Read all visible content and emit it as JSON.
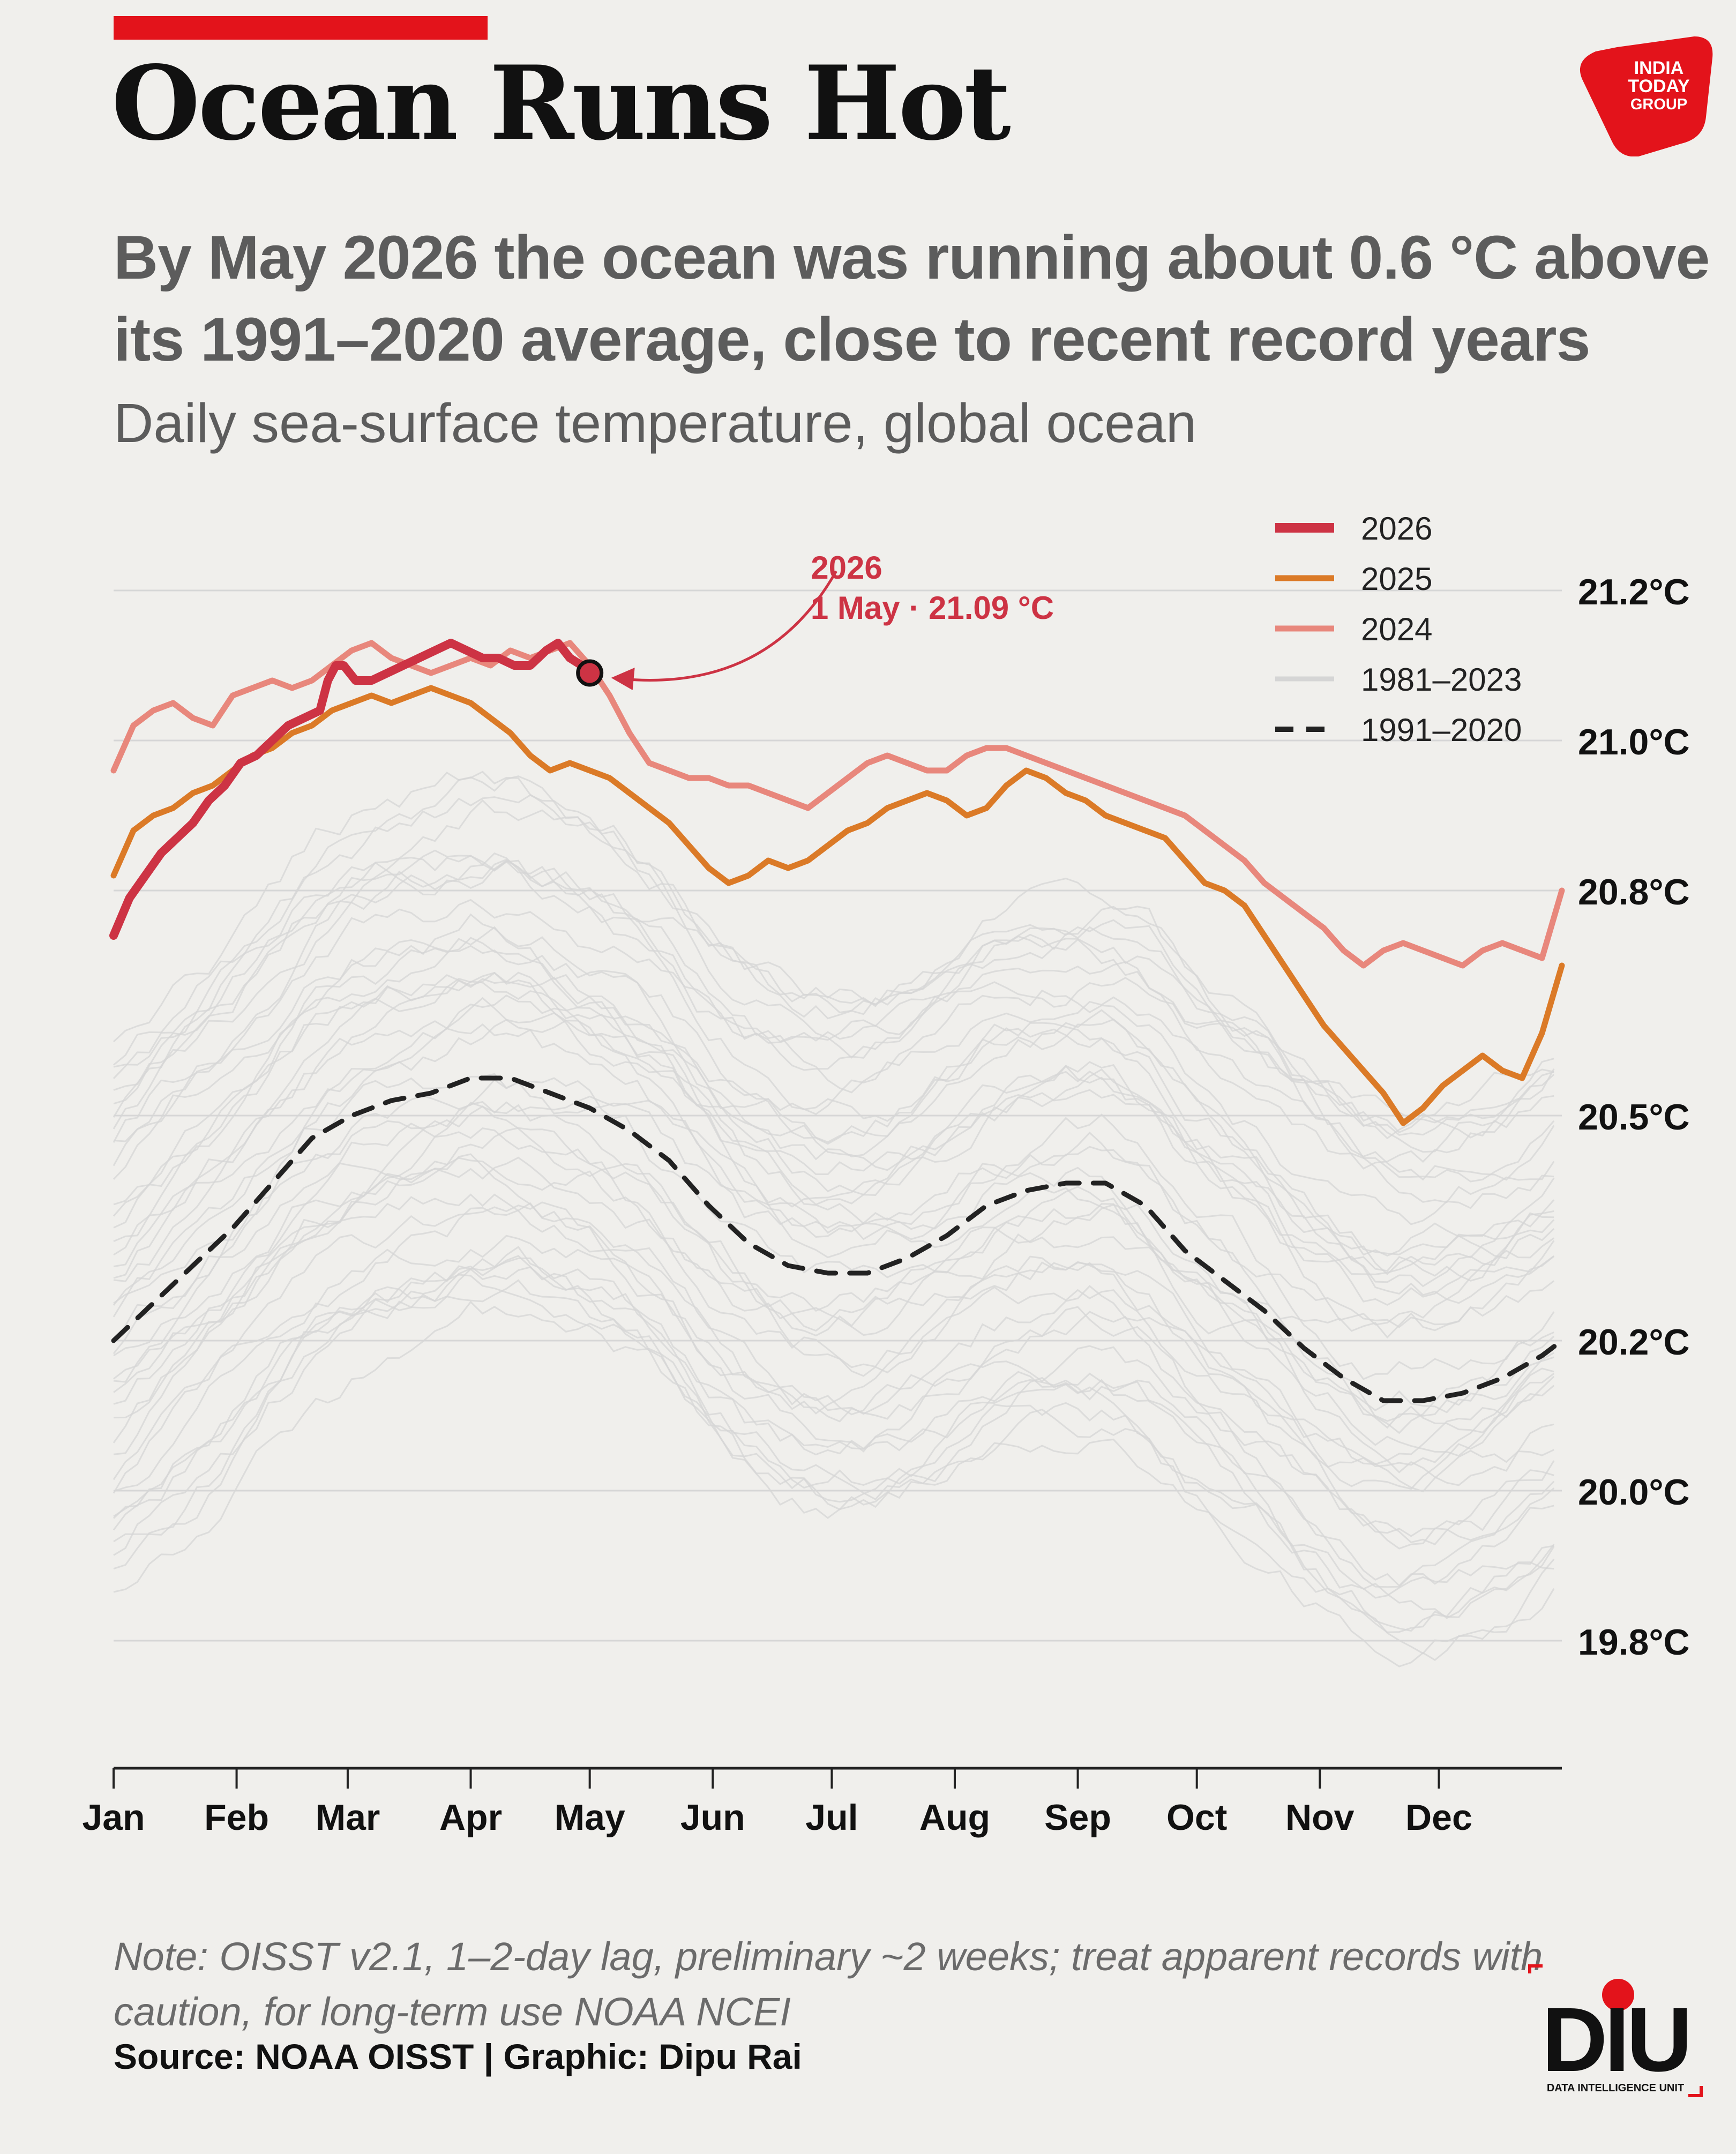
{
  "header": {
    "title": "Ocean Runs Hot",
    "subtitle": "By May 2026 the ocean was running about 0.6 °C above its 1991–2020 average, close to recent record years",
    "caption": "Daily sea-surface temperature, global ocean"
  },
  "footer": {
    "note": "Note: OISST v2.1, 1–2-day lag, preliminary ~2 weeks; treat apparent records with caution, for long-term use NOAA NCEI",
    "source": "Source: NOAA OISST | Graphic: Dipu Rai"
  },
  "logos": {
    "publisher": "INDIA TODAY GROUP",
    "unit": "DIU",
    "unit_tagline": "DATA INTELLIGENCE UNIT"
  },
  "colors": {
    "background": "#f0efec",
    "accent": "#e3131b",
    "s2026": "#cd3344",
    "s2025": "#db7a27",
    "s2024": "#e8877c",
    "history": "#d5d5d5",
    "baseline": "#222222",
    "grid": "#d6d6d6"
  },
  "chart_data": {
    "type": "line",
    "x_unit": "day of year",
    "xlim": [
      1,
      366
    ],
    "ylim": [
      19.63,
      21.33
    ],
    "y_ticks": [
      19.8,
      20.0,
      20.2,
      20.5,
      20.8,
      21.0,
      21.2
    ],
    "y_tick_labels": [
      "19.8°C",
      "20.0°C",
      "20.2°C",
      "20.5°C",
      "20.8°C",
      "21.0°C",
      "21.2°C"
    ],
    "x_ticks": [
      1,
      32,
      60,
      91,
      121,
      152,
      182,
      213,
      244,
      274,
      305,
      335
    ],
    "x_tick_labels": [
      "Jan",
      "Feb",
      "Mar",
      "Apr",
      "May",
      "Jun",
      "Jul",
      "Aug",
      "Sep",
      "Oct",
      "Nov",
      "Dec"
    ],
    "grid": "horizontal",
    "legend_position": "top-right",
    "legend": [
      {
        "label": "2026",
        "style": "thick"
      },
      {
        "label": "2025",
        "style": "solid"
      },
      {
        "label": "2024",
        "style": "solid"
      },
      {
        "label": "1981–2023",
        "style": "solid"
      },
      {
        "label": "1991–2020",
        "style": "dashed"
      }
    ],
    "annotation": {
      "line1": "2026",
      "line2": "1 May · 21.09 °C",
      "x": 121,
      "y": 21.09
    },
    "series": [
      {
        "name": "2026",
        "key": "s2026",
        "x": [
          1,
          5,
          9,
          13,
          17,
          21,
          25,
          29,
          33,
          37,
          41,
          45,
          49,
          53,
          55,
          57,
          59,
          62,
          66,
          70,
          74,
          78,
          82,
          86,
          90,
          94,
          98,
          102,
          106,
          110,
          113,
          116,
          119,
          121
        ],
        "y": [
          20.74,
          20.79,
          20.82,
          20.85,
          20.87,
          20.89,
          20.92,
          20.94,
          20.97,
          20.98,
          21.0,
          21.02,
          21.03,
          21.04,
          21.08,
          21.1,
          21.1,
          21.08,
          21.08,
          21.09,
          21.1,
          21.11,
          21.12,
          21.13,
          21.12,
          21.11,
          21.11,
          21.1,
          21.1,
          21.12,
          21.13,
          21.11,
          21.1,
          21.09
        ]
      },
      {
        "name": "2025",
        "key": "s2025",
        "x": [
          1,
          6,
          11,
          16,
          21,
          26,
          31,
          36,
          41,
          46,
          51,
          56,
          61,
          66,
          71,
          76,
          81,
          86,
          91,
          96,
          101,
          106,
          111,
          116,
          121,
          126,
          131,
          136,
          141,
          146,
          151,
          156,
          161,
          166,
          171,
          176,
          181,
          186,
          191,
          196,
          201,
          206,
          211,
          216,
          221,
          226,
          231,
          236,
          241,
          246,
          251,
          256,
          261,
          266,
          271,
          276,
          281,
          286,
          291,
          296,
          301,
          306,
          311,
          316,
          321,
          326,
          331,
          336,
          341,
          346,
          351,
          356,
          361,
          366
        ],
        "y": [
          20.82,
          20.88,
          20.9,
          20.91,
          20.93,
          20.94,
          20.96,
          20.98,
          20.99,
          21.01,
          21.02,
          21.04,
          21.05,
          21.06,
          21.05,
          21.06,
          21.07,
          21.06,
          21.05,
          21.03,
          21.01,
          20.98,
          20.96,
          20.97,
          20.96,
          20.95,
          20.93,
          20.91,
          20.89,
          20.86,
          20.83,
          20.81,
          20.82,
          20.84,
          20.83,
          20.84,
          20.86,
          20.88,
          20.89,
          20.91,
          20.92,
          20.93,
          20.92,
          20.9,
          20.91,
          20.94,
          20.96,
          20.95,
          20.93,
          20.92,
          20.9,
          20.89,
          20.88,
          20.87,
          20.84,
          20.81,
          20.8,
          20.78,
          20.74,
          20.7,
          20.66,
          20.62,
          20.59,
          20.56,
          20.53,
          20.49,
          20.51,
          20.54,
          20.56,
          20.58,
          20.56,
          20.55,
          20.61,
          20.7
        ]
      },
      {
        "name": "2024",
        "key": "s2024",
        "x": [
          1,
          6,
          11,
          16,
          21,
          26,
          31,
          36,
          41,
          46,
          51,
          56,
          61,
          66,
          71,
          76,
          81,
          86,
          91,
          96,
          101,
          106,
          111,
          116,
          121,
          126,
          131,
          136,
          141,
          146,
          151,
          156,
          161,
          166,
          171,
          176,
          181,
          186,
          191,
          196,
          201,
          206,
          211,
          216,
          221,
          226,
          231,
          236,
          241,
          246,
          251,
          256,
          261,
          266,
          271,
          276,
          281,
          286,
          291,
          296,
          301,
          306,
          311,
          316,
          321,
          326,
          331,
          336,
          341,
          346,
          351,
          356,
          361,
          366
        ],
        "y": [
          20.96,
          21.02,
          21.04,
          21.05,
          21.03,
          21.02,
          21.06,
          21.07,
          21.08,
          21.07,
          21.08,
          21.1,
          21.12,
          21.13,
          21.11,
          21.1,
          21.09,
          21.1,
          21.11,
          21.1,
          21.12,
          21.11,
          21.12,
          21.13,
          21.1,
          21.06,
          21.01,
          20.97,
          20.96,
          20.95,
          20.95,
          20.94,
          20.94,
          20.93,
          20.92,
          20.91,
          20.93,
          20.95,
          20.97,
          20.98,
          20.97,
          20.96,
          20.96,
          20.98,
          20.99,
          20.99,
          20.98,
          20.97,
          20.96,
          20.95,
          20.94,
          20.93,
          20.92,
          20.91,
          20.9,
          20.88,
          20.86,
          20.84,
          20.81,
          20.79,
          20.77,
          20.75,
          20.72,
          20.7,
          20.72,
          20.73,
          20.72,
          20.71,
          20.7,
          20.72,
          20.73,
          20.72,
          20.71,
          20.8
        ]
      },
      {
        "name": "1991–2020",
        "key": "baseline",
        "x": [
          1,
          11,
          21,
          31,
          41,
          51,
          61,
          71,
          81,
          91,
          101,
          111,
          121,
          131,
          141,
          151,
          161,
          171,
          181,
          191,
          201,
          211,
          221,
          231,
          241,
          251,
          261,
          271,
          281,
          291,
          301,
          311,
          321,
          331,
          341,
          351,
          361,
          366
        ],
        "y": [
          20.2,
          20.25,
          20.3,
          20.35,
          20.41,
          20.47,
          20.5,
          20.52,
          20.53,
          20.55,
          20.55,
          20.53,
          20.51,
          20.48,
          20.44,
          20.38,
          20.33,
          20.3,
          20.29,
          20.29,
          20.31,
          20.34,
          20.38,
          20.4,
          20.41,
          20.41,
          20.38,
          20.32,
          20.28,
          20.24,
          20.19,
          20.15,
          20.12,
          20.12,
          20.13,
          20.15,
          20.18,
          20.2
        ]
      }
    ]
  }
}
